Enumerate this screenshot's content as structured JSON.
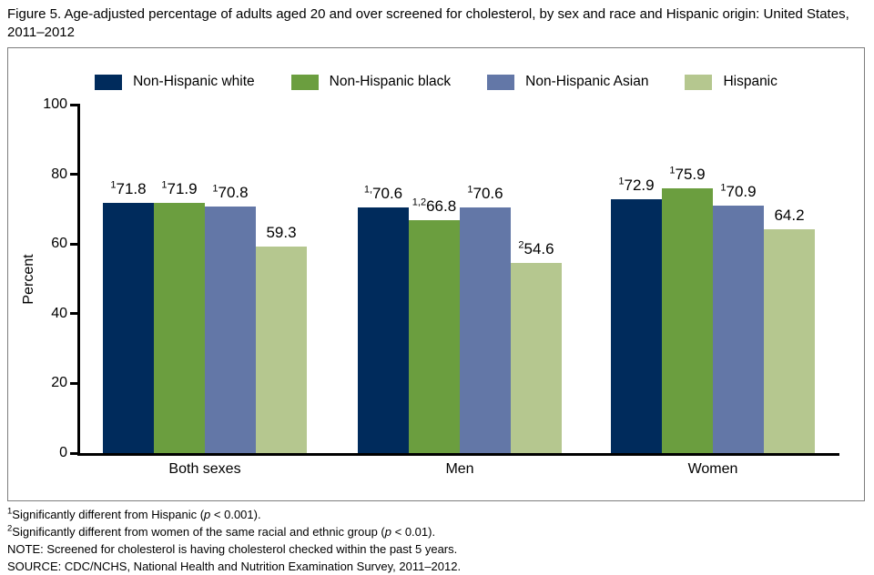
{
  "figure": {
    "title": "Figure 5. Age-adjusted percentage of adults aged 20 and over screened for cholesterol, by sex and race and Hispanic origin: United States, 2011–2012"
  },
  "chart_data": {
    "type": "bar",
    "title": "Figure 5. Age-adjusted percentage of adults aged 20 and over screened for cholesterol, by sex and race and Hispanic origin: United States, 2011–2012",
    "xlabel": "",
    "ylabel": "Percent",
    "ylim": [
      0,
      100
    ],
    "yticks": [
      0,
      20,
      40,
      60,
      80,
      100
    ],
    "grid": false,
    "legend_position": "top-center",
    "categories": [
      "Both sexes",
      "Men",
      "Women"
    ],
    "series": [
      {
        "name": "Non-Hispanic white",
        "color": "#002B5C",
        "values": [
          71.8,
          70.6,
          72.9
        ],
        "label_sups": [
          "1",
          "1,",
          "1"
        ]
      },
      {
        "name": "Non-Hispanic black",
        "color": "#6B9E3F",
        "values": [
          71.9,
          66.8,
          75.9
        ],
        "label_sups": [
          "1",
          "1,2",
          "1"
        ]
      },
      {
        "name": "Non-Hispanic Asian",
        "color": "#6377A7",
        "values": [
          70.8,
          70.6,
          70.9
        ],
        "label_sups": [
          "1",
          "1",
          "1"
        ]
      },
      {
        "name": "Hispanic",
        "color": "#B5C78F",
        "values": [
          59.3,
          54.6,
          64.2
        ],
        "label_sups": [
          "",
          "2",
          ""
        ]
      }
    ]
  },
  "footnotes": [
    [
      {
        "t": "sup",
        "v": "1"
      },
      {
        "t": "text",
        "v": "Significantly different from Hispanic ("
      },
      {
        "t": "i",
        "v": "p"
      },
      {
        "t": "text",
        "v": " < 0.001)."
      }
    ],
    [
      {
        "t": "sup",
        "v": "2"
      },
      {
        "t": "text",
        "v": "Significantly different from women of the same racial and ethnic group ("
      },
      {
        "t": "i",
        "v": "p"
      },
      {
        "t": "text",
        "v": " < 0.01)."
      }
    ],
    [
      {
        "t": "text",
        "v": "NOTE: Screened for cholesterol is having cholesterol checked within the past 5 years."
      }
    ],
    [
      {
        "t": "text",
        "v": "SOURCE: CDC/NCHS, National Health and Nutrition Examination Survey, 2011–2012."
      }
    ]
  ]
}
